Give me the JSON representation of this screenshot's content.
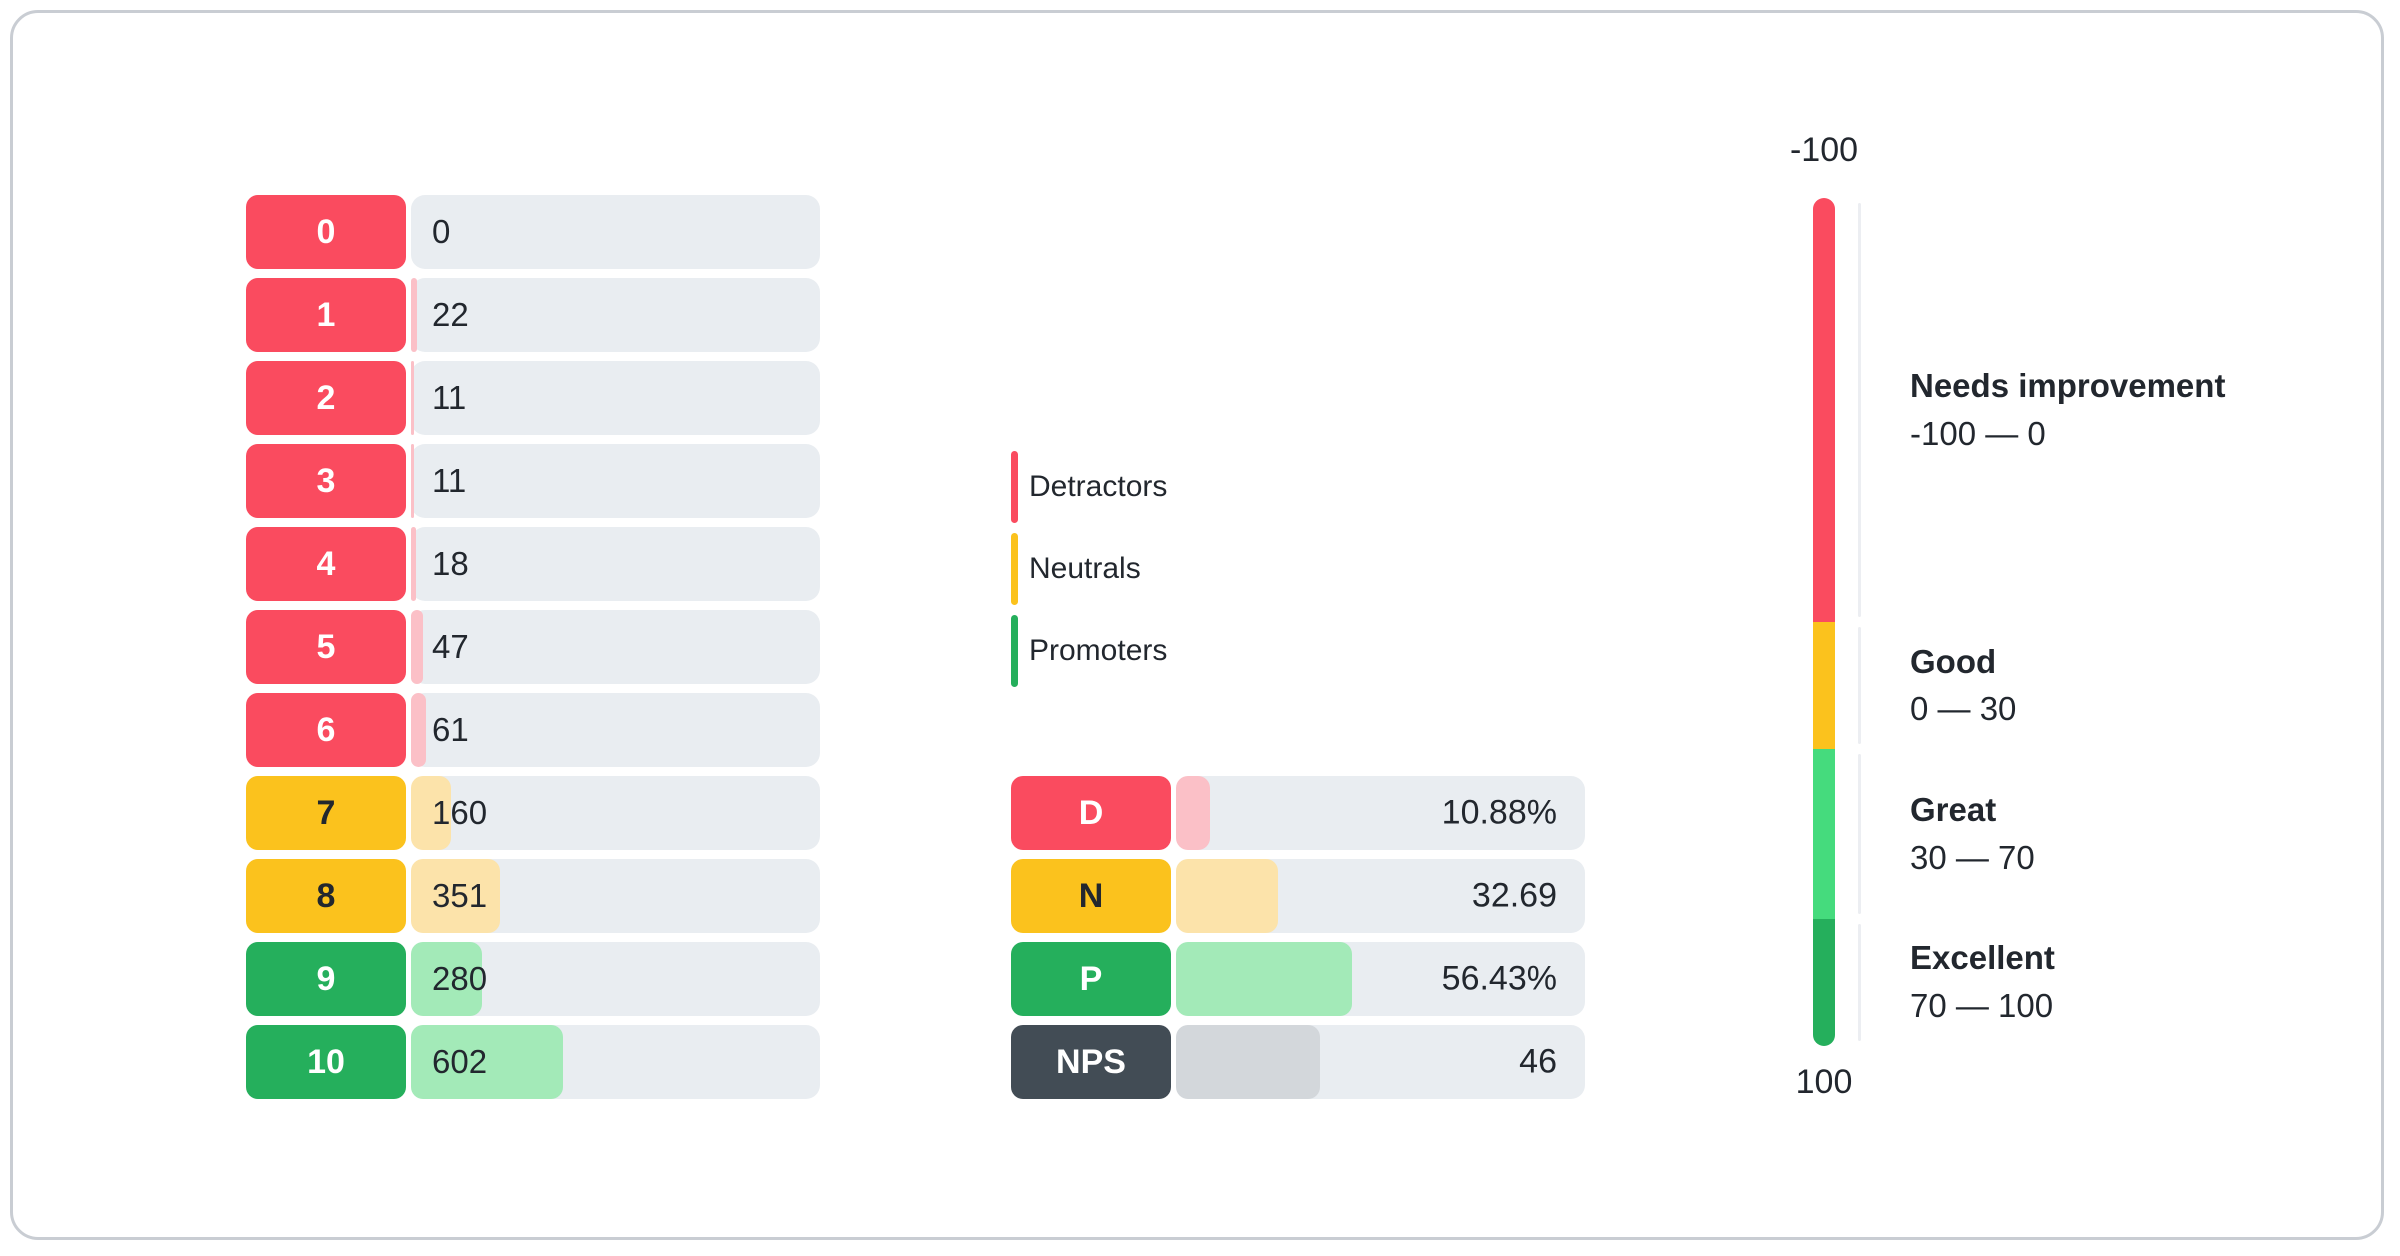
{
  "palette": {
    "detractor": {
      "bg": "#FA4B5F",
      "fill": "#FBC0C7",
      "label_text": "#FFFFFF"
    },
    "neutral": {
      "bg": "#FBC21D",
      "fill": "#FCE3AA",
      "label_text": "#22272E"
    },
    "promoter": {
      "bg": "#25AF5C",
      "fill": "#A3EAB8",
      "label_text": "#FFFFFF"
    },
    "nps": {
      "bg": "#424C55",
      "fill": "#D3D7DB",
      "label_text": "#FFFFFF"
    },
    "gauge_great": "#45DB7D",
    "track": "#E9EDF1",
    "tick": "#ECEEF2",
    "card_border": "#C9CDD3",
    "text": "#22272E"
  },
  "score_chart": {
    "rows": [
      {
        "score": "0",
        "count": 0,
        "group": "detractor"
      },
      {
        "score": "1",
        "count": 22,
        "group": "detractor"
      },
      {
        "score": "2",
        "count": 11,
        "group": "detractor"
      },
      {
        "score": "3",
        "count": 11,
        "group": "detractor"
      },
      {
        "score": "4",
        "count": 18,
        "group": "detractor"
      },
      {
        "score": "5",
        "count": 47,
        "group": "detractor"
      },
      {
        "score": "6",
        "count": 61,
        "group": "detractor"
      },
      {
        "score": "7",
        "count": 160,
        "group": "neutral"
      },
      {
        "score": "8",
        "count": 351,
        "group": "neutral"
      },
      {
        "score": "9",
        "count": 280,
        "group": "promoter"
      },
      {
        "score": "10",
        "count": 602,
        "group": "promoter"
      }
    ]
  },
  "legend": {
    "items": [
      {
        "label": "Detractors",
        "group": "detractor"
      },
      {
        "label": "Neutrals",
        "group": "neutral"
      },
      {
        "label": "Promoters",
        "group": "promoter"
      }
    ]
  },
  "summary_chart": {
    "rows": [
      {
        "label": "D",
        "value": 10.88,
        "value_display": "10.88%",
        "group": "detractor"
      },
      {
        "label": "N",
        "value": 32.69,
        "value_display": "32.69",
        "group": "neutral"
      },
      {
        "label": "P",
        "value": 56.43,
        "value_display": "56.43%",
        "group": "promoter"
      },
      {
        "label": "NPS",
        "value": 46,
        "value_display": "46",
        "group": "nps"
      }
    ]
  },
  "gauge": {
    "top_label": "-100",
    "bottom_label": "100",
    "min": -100,
    "max": 100,
    "segments": [
      {
        "title": "Needs improvement",
        "range_label": "-100 — 0",
        "from": -100,
        "to": 0,
        "color": "#FA4B5F"
      },
      {
        "title": "Good",
        "range_label": "0 — 30",
        "from": 0,
        "to": 30,
        "color": "#FBC21D"
      },
      {
        "title": "Great",
        "range_label": "30 — 70",
        "from": 30,
        "to": 70,
        "color": "#45DB7D"
      },
      {
        "title": "Excellent",
        "range_label": "70 — 100",
        "from": 70,
        "to": 100,
        "color": "#25AF5C"
      }
    ]
  },
  "chart_data": [
    {
      "type": "bar",
      "orientation": "horizontal",
      "title": "NPS score distribution (responses per score)",
      "categories": [
        "0",
        "1",
        "2",
        "3",
        "4",
        "5",
        "6",
        "7",
        "8",
        "9",
        "10"
      ],
      "values": [
        0,
        22,
        11,
        11,
        18,
        47,
        61,
        160,
        351,
        280,
        602
      ],
      "series_groups": [
        "detractor",
        "detractor",
        "detractor",
        "detractor",
        "detractor",
        "detractor",
        "detractor",
        "neutral",
        "neutral",
        "promoter",
        "promoter"
      ],
      "xlabel": "",
      "ylabel": "",
      "grid": false,
      "legend_position": "none"
    },
    {
      "type": "bar",
      "orientation": "horizontal",
      "title": "NPS summary",
      "categories": [
        "D",
        "N",
        "P",
        "NPS"
      ],
      "values": [
        10.88,
        32.69,
        56.43,
        46
      ],
      "value_labels": [
        "10.88%",
        "32.69",
        "56.43%",
        "46"
      ],
      "legend_entries": [
        "Detractors",
        "Neutrals",
        "Promoters"
      ],
      "grid": false
    },
    {
      "type": "gauge",
      "title": "NPS rating scale",
      "axis_range": [
        -100,
        100
      ],
      "tick_labels": [
        "-100",
        "100"
      ],
      "zones": [
        {
          "label": "Needs improvement",
          "from": -100,
          "to": 0
        },
        {
          "label": "Good",
          "from": 0,
          "to": 30
        },
        {
          "label": "Great",
          "from": 30,
          "to": 70
        },
        {
          "label": "Excellent",
          "from": 70,
          "to": 100
        }
      ]
    }
  ]
}
